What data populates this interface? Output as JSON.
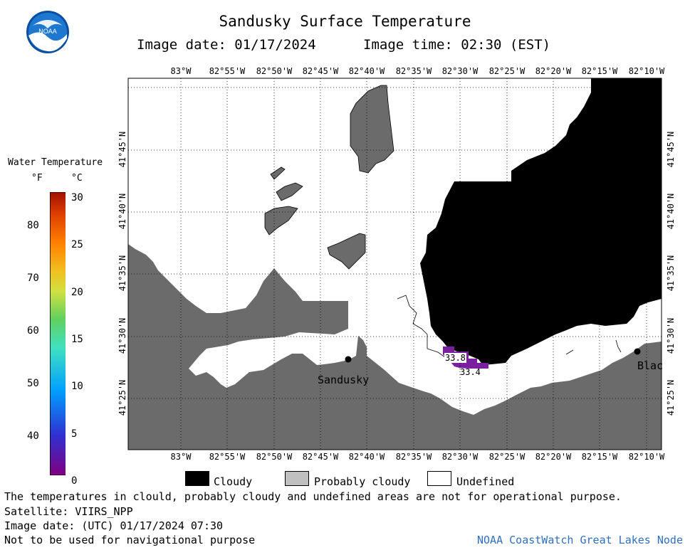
{
  "header": {
    "title": "Sandusky Surface Temperature",
    "image_date": "Image date: 01/17/2024",
    "image_time": "Image time: 02:30 (EST)",
    "logo_text": "NOAA"
  },
  "color_scale": {
    "title": "Water Temperature",
    "unit_f": "°F",
    "unit_c": "°C",
    "f_ticks": [
      "80",
      "70",
      "60",
      "50",
      "40"
    ],
    "c_ticks": [
      "30",
      "25",
      "20",
      "15",
      "10",
      "5",
      "0"
    ],
    "gradient_colors": [
      "#800080",
      "#3030d0",
      "#00a0ff",
      "#40e0c0",
      "#60d060",
      "#d0e040",
      "#f0c020",
      "#ff8000",
      "#e04000",
      "#a01000"
    ]
  },
  "map": {
    "lon_labels": [
      "83°W",
      "82°55'W",
      "82°50'W",
      "82°45'W",
      "82°40'W",
      "82°35'W",
      "82°30'W",
      "82°25'W",
      "82°20'W",
      "82°15'W",
      "82°10'W"
    ],
    "lat_labels": [
      "41°45'N",
      "41°40'N",
      "41°35'N",
      "41°30'N",
      "41°25'N"
    ],
    "cities": [
      {
        "name": "Sandusky"
      },
      {
        "name": "Blac"
      }
    ],
    "readings": [
      "33.8",
      "33.4"
    ],
    "colors": {
      "land": "#6b6b6b",
      "cloud": "#000000",
      "water_cold": "#7a1fa0"
    }
  },
  "legend": {
    "cloudy": "Cloudy",
    "probably_cloudy": "Probably cloudy",
    "undefined": "Undefined"
  },
  "footer": {
    "disclaimer": "The temperatures in clould, probably cloudy and undefined areas are not for operational purpose.",
    "satellite": "Satellite: VIIRS_NPP",
    "utc_date": "Image date: (UTC) 01/17/2024  07:30",
    "navigation": "Not to be used for navigational purpose",
    "credit": "NOAA CoastWatch Great Lakes Node"
  }
}
